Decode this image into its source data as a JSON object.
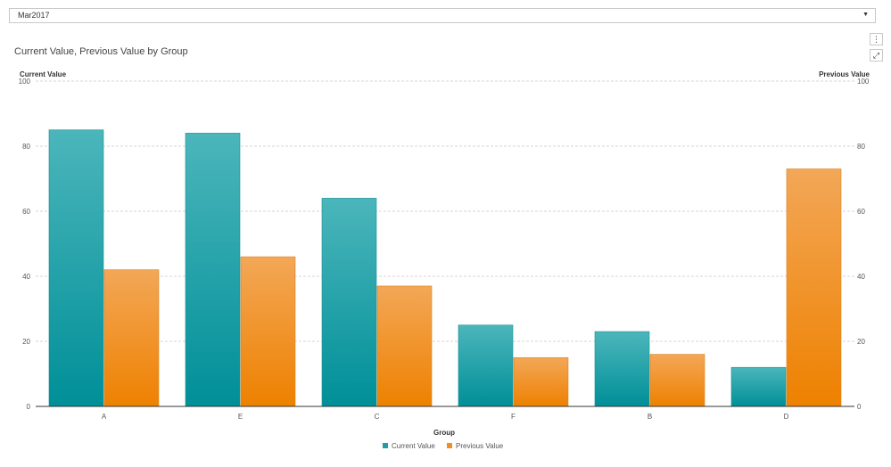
{
  "filter": {
    "selected": "Mar2017"
  },
  "chart_data": {
    "type": "bar",
    "title": "Current Value, Previous Value by Group",
    "xlabel": "Group",
    "ylabel": "Current Value",
    "ylabel_right": "Previous Value",
    "categories": [
      "A",
      "E",
      "C",
      "F",
      "B",
      "D"
    ],
    "series": [
      {
        "name": "Current Value",
        "values": [
          85,
          84,
          64,
          25,
          23,
          12
        ]
      },
      {
        "name": "Previous Value",
        "values": [
          42,
          46,
          37,
          15,
          16,
          73
        ]
      }
    ],
    "ylim": [
      0,
      100
    ],
    "yticks": [
      0,
      20,
      40,
      60,
      80,
      100
    ],
    "grid": true,
    "legend_position": "bottom-center",
    "colors": {
      "Current Value": "#1f9ea5",
      "Previous Value": "#f18f23"
    }
  }
}
